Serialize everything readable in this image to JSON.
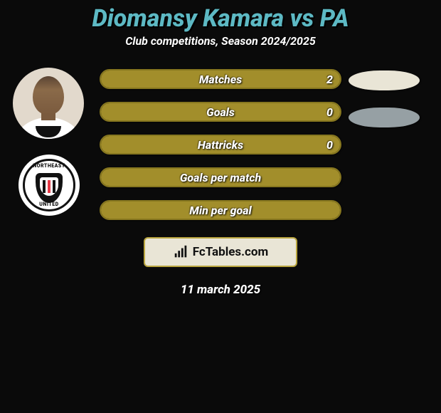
{
  "colors": {
    "accent": "#5db9c4",
    "bar_fill": "#a28e2b",
    "bar_border": "#87771f",
    "ellipse_a": "#e9e5d6",
    "ellipse_b": "#96a0a4",
    "badge_border": "#baa640",
    "background": "#0a0a0a"
  },
  "header": {
    "title_left": "Diomansy Kamara",
    "title_vs": " vs ",
    "title_right": "PA",
    "subtitle": "Club competitions, Season 2024/2025"
  },
  "bars": [
    {
      "label": "Matches",
      "value_left": "2",
      "show_value": true,
      "fill_pct": 100
    },
    {
      "label": "Goals",
      "value_left": "0",
      "show_value": true,
      "fill_pct": 100
    },
    {
      "label": "Hattricks",
      "value_left": "0",
      "show_value": true,
      "fill_pct": 100
    },
    {
      "label": "Goals per match",
      "value_left": "",
      "show_value": false,
      "fill_pct": 100
    },
    {
      "label": "Min per goal",
      "value_left": "",
      "show_value": false,
      "fill_pct": 100
    }
  ],
  "right_ellipses": [
    {
      "color_key": "ellipse_a"
    },
    {
      "color_key": "ellipse_b"
    }
  ],
  "club": {
    "top_text": "NORTHEAST",
    "bottom_text": "UNITED"
  },
  "footer": {
    "brand": "FcTables.com",
    "date": "11 march 2025"
  }
}
